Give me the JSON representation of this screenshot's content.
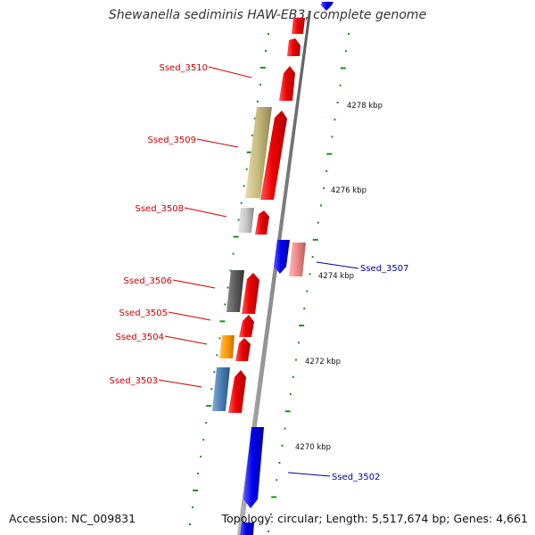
{
  "title": "Shewanella sediminis HAW-EB3, complete genome",
  "footer": {
    "accession": "Accession: NC_009831",
    "summary": "Topology: circular; Length: 5,517,674 bp; Genes: 4,661"
  },
  "colors": {
    "backbone": "#8a8a8a",
    "cds_red": "#ee0000",
    "cds_blue": "#0000ee",
    "label_left": "#cc0000",
    "label_right": "#000099",
    "tick_green": "#228b22",
    "khaki": "#c4b97a",
    "light_gray": "#c8c8c8",
    "dark_gray": "#5c5c5c",
    "pink": "#ee8888",
    "orange": "#ff9900",
    "steel_blue": "#4a7fb5"
  },
  "kbp_labels": [
    "4278 kbp",
    "4276 kbp",
    "4274 kbp",
    "4272 kbp",
    "4270 kbp"
  ],
  "gene_labels": {
    "left": [
      "Ssed_3510",
      "Ssed_3509",
      "Ssed_3508",
      "Ssed_3506",
      "Ssed_3505",
      "Ssed_3504",
      "Ssed_3503"
    ],
    "right": [
      "Ssed_3507",
      "Ssed_3502"
    ]
  }
}
